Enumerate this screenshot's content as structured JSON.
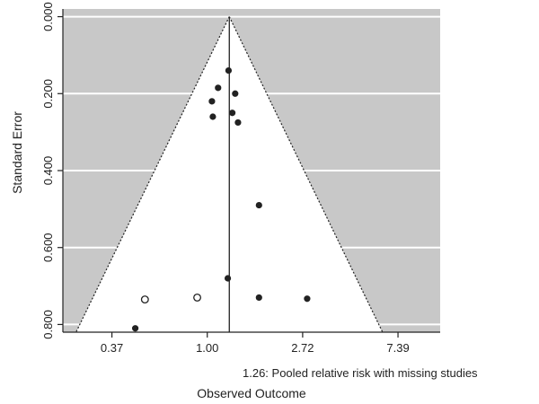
{
  "chart_data": {
    "type": "scatter",
    "subtype": "funnel",
    "xlabel": "Observed Outcome",
    "ylabel": "Standard Error",
    "x_scale": "log",
    "x_ticks": [
      {
        "value": 0.3679,
        "label": "0.37"
      },
      {
        "value": 1.0,
        "label": "1.00"
      },
      {
        "value": 2.7183,
        "label": "2.72"
      },
      {
        "value": 7.389,
        "label": "7.39"
      }
    ],
    "y_ticks": [
      {
        "value": 0.0,
        "label": "0.000"
      },
      {
        "value": 0.2,
        "label": "0.200"
      },
      {
        "value": 0.4,
        "label": "0.400"
      },
      {
        "value": 0.6,
        "label": "0.600"
      },
      {
        "value": 0.8,
        "label": "0.800"
      }
    ],
    "xlim": [
      0.22,
      11.5
    ],
    "ylim": [
      0.82,
      -0.02
    ],
    "y_reversed": true,
    "grid": true,
    "pooled_estimate": 1.26,
    "pooled_note": "1.26: Pooled relative risk with missing studies",
    "funnel_apex": 1.26,
    "funnel_bottom_se": 0.82,
    "colors": {
      "shaded_region": "#c8c8c8",
      "funnel_interior": "#ffffff",
      "observed_point": "#222222",
      "imputed_point_fill": "#ffffff"
    },
    "series": [
      {
        "kind": "observed",
        "x": [
          1.25,
          1.12,
          1.05,
          1.34,
          1.3,
          1.06,
          1.38,
          1.72,
          1.24,
          1.72,
          2.85,
          0.47
        ],
        "y": [
          0.14,
          0.185,
          0.22,
          0.2,
          0.25,
          0.26,
          0.275,
          0.49,
          0.68,
          0.73,
          0.733,
          0.81
        ]
      },
      {
        "kind": "imputed",
        "x": [
          0.52,
          0.9
        ],
        "y": [
          0.735,
          0.73
        ]
      }
    ]
  }
}
